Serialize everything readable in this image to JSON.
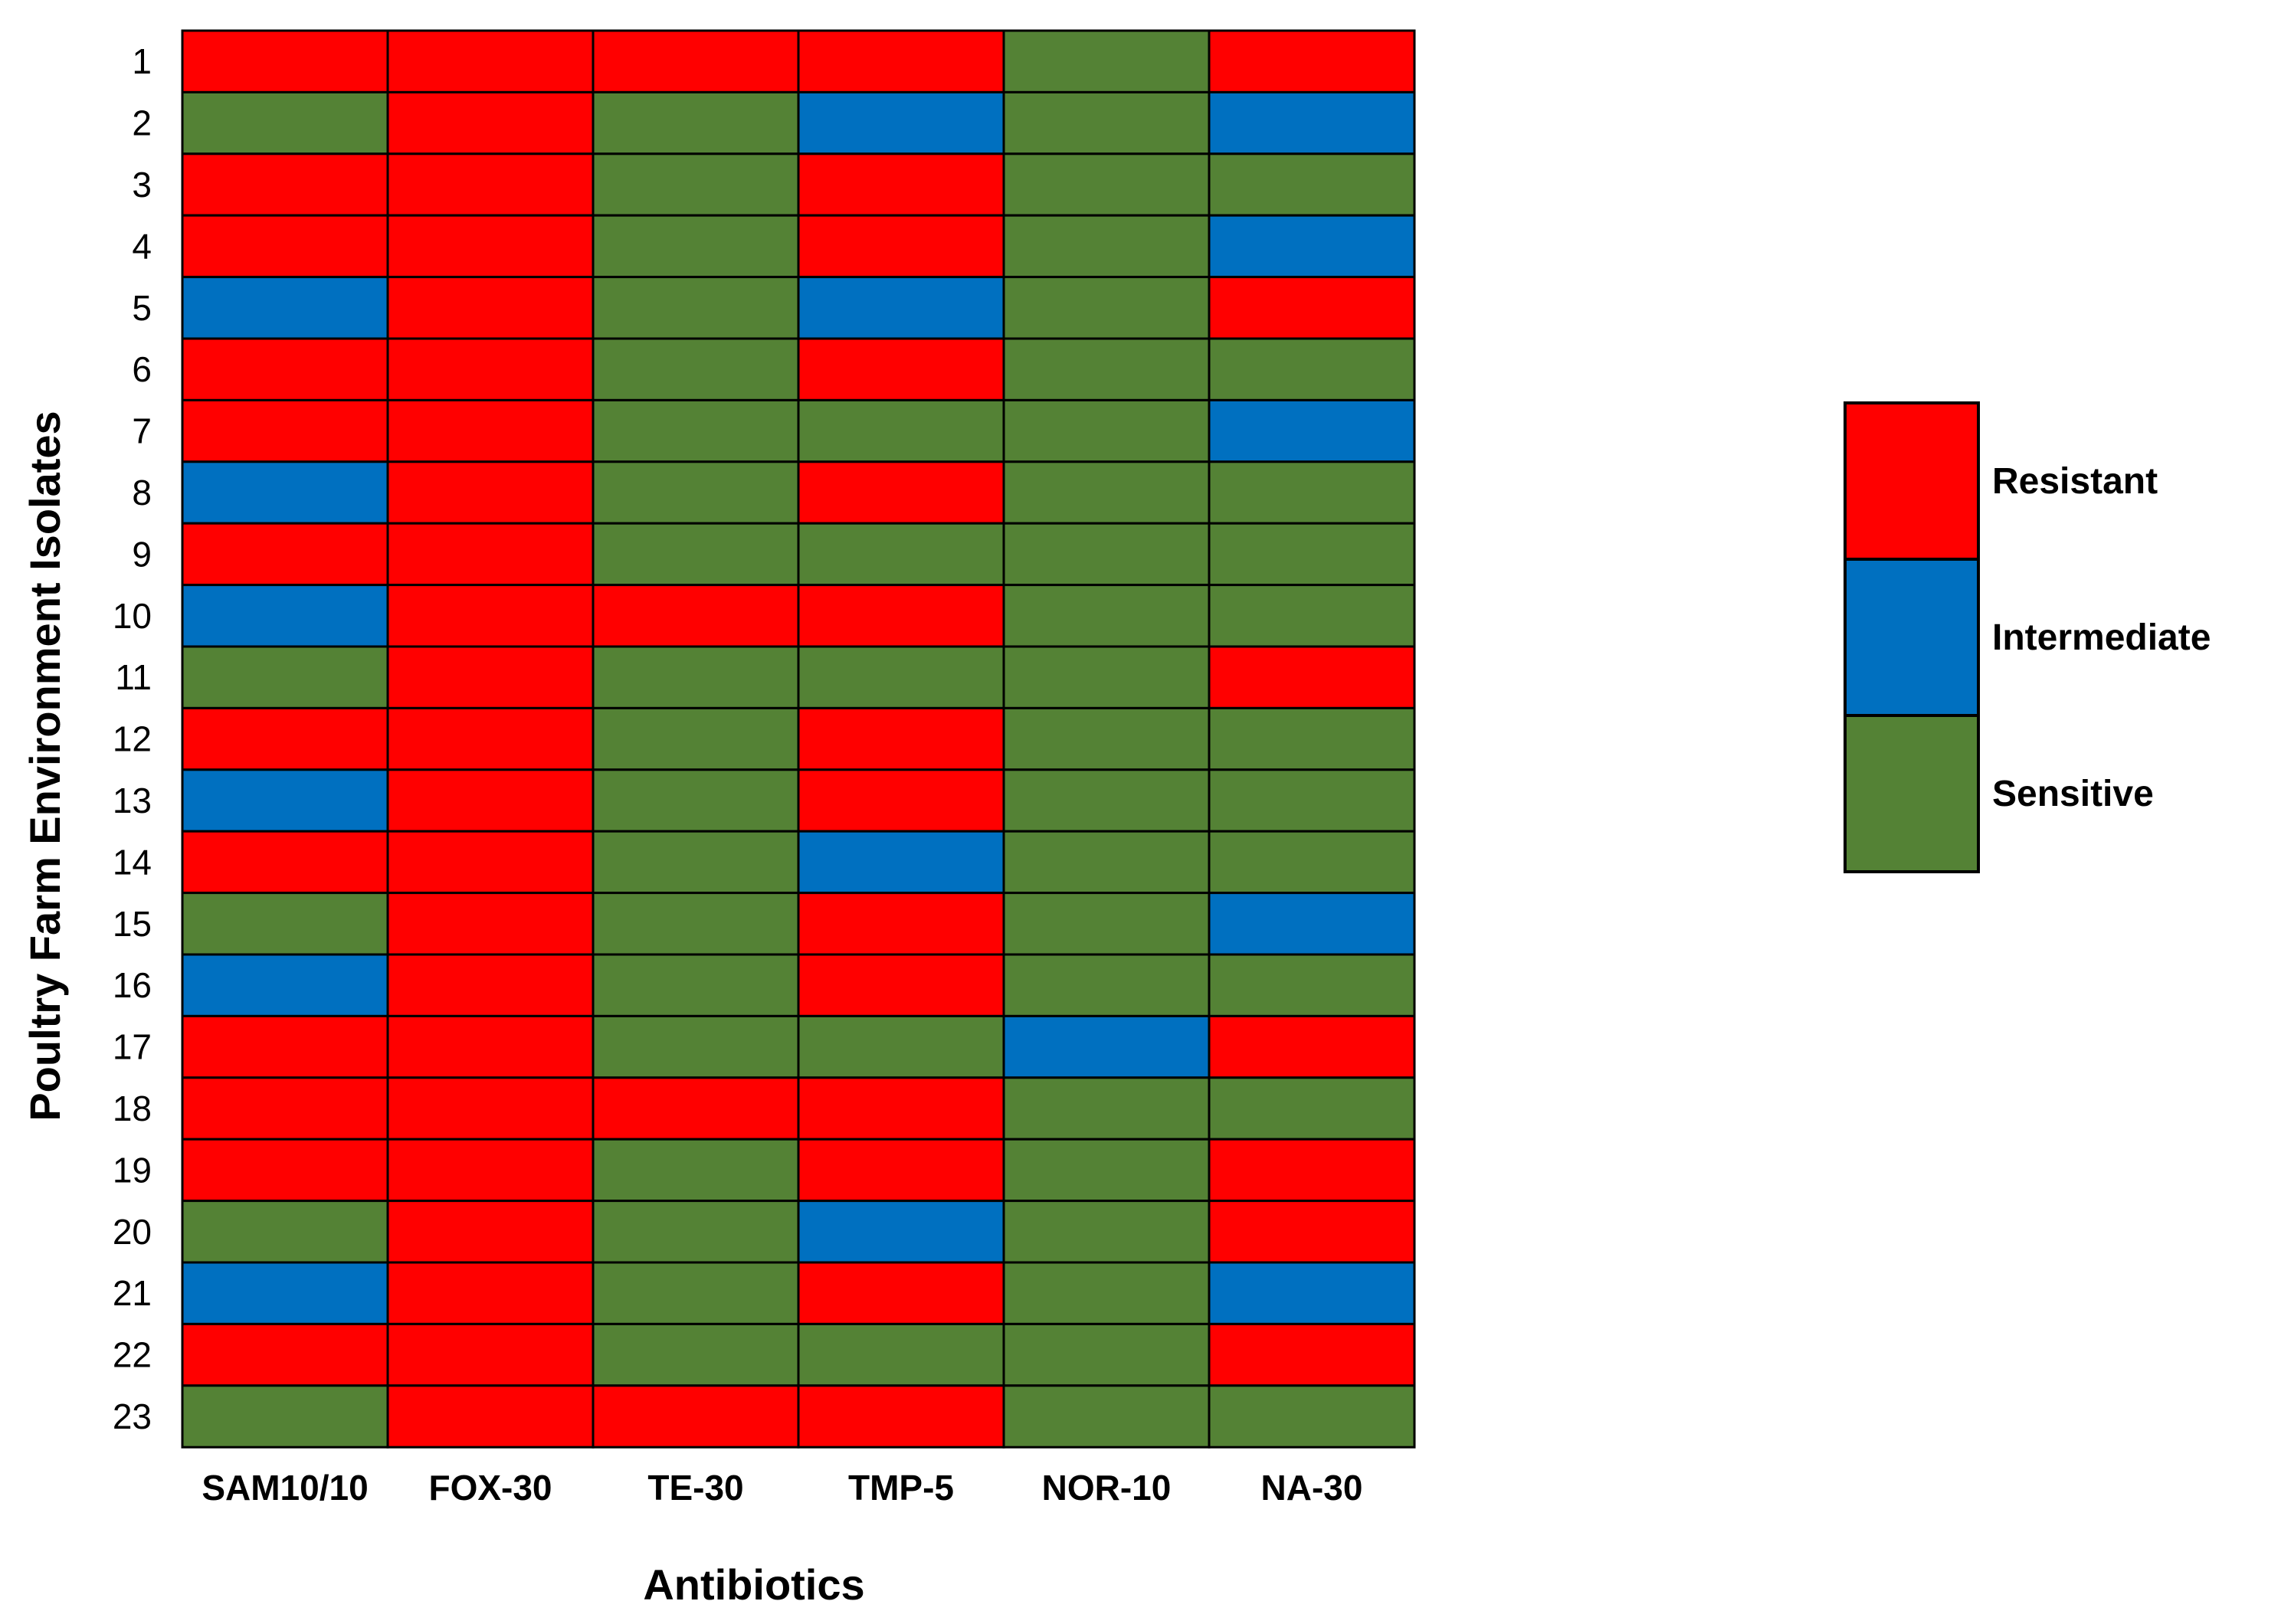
{
  "chart_data": {
    "type": "heatmap",
    "title": "",
    "xlabel": "Antibiotics",
    "ylabel": "Poultry Farm Environment Isolates",
    "columns": [
      "SAM10/10",
      "FOX-30",
      "TE-30",
      "TMP-5",
      "NOR-10",
      "NA-30"
    ],
    "rows": [
      "1",
      "2",
      "3",
      "4",
      "5",
      "6",
      "7",
      "8",
      "9",
      "10",
      "11",
      "12",
      "13",
      "14",
      "15",
      "16",
      "17",
      "18",
      "19",
      "20",
      "21",
      "22",
      "23"
    ],
    "categories": [
      {
        "key": "R",
        "name": "Resistant",
        "color": "#ff0000"
      },
      {
        "key": "I",
        "name": "Intermediate",
        "color": "#0070c0"
      },
      {
        "key": "S",
        "name": "Sensitive",
        "color": "#548235"
      }
    ],
    "values": [
      [
        "R",
        "R",
        "R",
        "R",
        "S",
        "R"
      ],
      [
        "S",
        "R",
        "S",
        "I",
        "S",
        "I"
      ],
      [
        "R",
        "R",
        "S",
        "R",
        "S",
        "S"
      ],
      [
        "R",
        "R",
        "S",
        "R",
        "S",
        "I"
      ],
      [
        "I",
        "R",
        "S",
        "I",
        "S",
        "R"
      ],
      [
        "R",
        "R",
        "S",
        "R",
        "S",
        "S"
      ],
      [
        "R",
        "R",
        "S",
        "S",
        "S",
        "I"
      ],
      [
        "I",
        "R",
        "S",
        "R",
        "S",
        "S"
      ],
      [
        "R",
        "R",
        "S",
        "S",
        "S",
        "S"
      ],
      [
        "I",
        "R",
        "R",
        "R",
        "S",
        "S"
      ],
      [
        "S",
        "R",
        "S",
        "S",
        "S",
        "R"
      ],
      [
        "R",
        "R",
        "S",
        "R",
        "S",
        "S"
      ],
      [
        "I",
        "R",
        "S",
        "R",
        "S",
        "S"
      ],
      [
        "R",
        "R",
        "S",
        "I",
        "S",
        "S"
      ],
      [
        "S",
        "R",
        "S",
        "R",
        "S",
        "I"
      ],
      [
        "I",
        "R",
        "S",
        "R",
        "S",
        "S"
      ],
      [
        "R",
        "R",
        "S",
        "S",
        "I",
        "R"
      ],
      [
        "R",
        "R",
        "R",
        "R",
        "S",
        "S"
      ],
      [
        "R",
        "R",
        "S",
        "R",
        "S",
        "R"
      ],
      [
        "S",
        "R",
        "S",
        "I",
        "S",
        "R"
      ],
      [
        "I",
        "R",
        "S",
        "R",
        "S",
        "I"
      ],
      [
        "R",
        "R",
        "S",
        "S",
        "S",
        "R"
      ],
      [
        "S",
        "R",
        "R",
        "R",
        "S",
        "S"
      ]
    ],
    "legend_position": "right"
  }
}
